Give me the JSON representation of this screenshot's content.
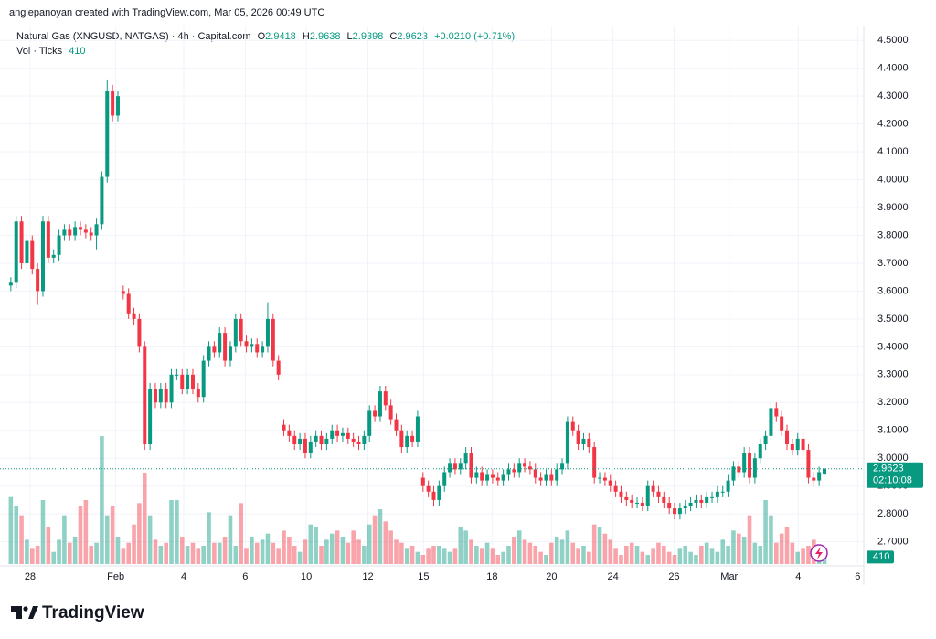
{
  "header": {
    "attribution": "angiepanoyan created with TradingView.com, Mar 05, 2026 00:49 UTC",
    "logo": "TradingView"
  },
  "chart_data": {
    "type": "candlestick",
    "symbol": "Natural Gas (XNGUSD, NATGAS) · 4h · Capital.com",
    "ohlc_labels": [
      "O",
      "H",
      "L",
      "C"
    ],
    "change_label": "+0.0210 (+0.71%)",
    "volume_label": "Vol · Ticks",
    "countdown": "02:10:08",
    "up_color": "#089981",
    "down_color": "#f23645",
    "grid": true,
    "ylim": [
      2.62,
      4.55
    ],
    "volume_ylim": [
      0,
      4500
    ],
    "xlim": [
      -1,
      159
    ],
    "yticks": [
      {
        "value": 2.7,
        "label": "2.7000"
      },
      {
        "value": 2.8,
        "label": "2.8000"
      },
      {
        "value": 2.9,
        "label": "2.9000"
      },
      {
        "value": 3.0,
        "label": "3.0000"
      },
      {
        "value": 3.1,
        "label": "3.1000"
      },
      {
        "value": 3.2,
        "label": "3.2000"
      },
      {
        "value": 3.3,
        "label": "3.3000"
      },
      {
        "value": 3.4,
        "label": "3.4000"
      },
      {
        "value": 3.5,
        "label": "3.5000"
      },
      {
        "value": 3.6,
        "label": "3.6000"
      },
      {
        "value": 3.7,
        "label": "3.7000"
      },
      {
        "value": 3.8,
        "label": "3.8000"
      },
      {
        "value": 3.9,
        "label": "3.9000"
      },
      {
        "value": 4.0,
        "label": "4.0000"
      },
      {
        "value": 4.1,
        "label": "4.1000"
      },
      {
        "value": 4.2,
        "label": "4.2000"
      },
      {
        "value": 4.3,
        "label": "4.3000"
      },
      {
        "value": 4.4,
        "label": "4.4000"
      },
      {
        "value": 4.5,
        "label": "4.5000"
      }
    ],
    "xticks": [
      {
        "value": 3.6,
        "label": "28"
      },
      {
        "value": 19.6,
        "label": "Feb"
      },
      {
        "value": 32.3,
        "label": "4"
      },
      {
        "value": 43.8,
        "label": "6"
      },
      {
        "value": 55.2,
        "label": "10"
      },
      {
        "value": 66.7,
        "label": "12"
      },
      {
        "value": 77.1,
        "label": "15"
      },
      {
        "value": 89.9,
        "label": "18"
      },
      {
        "value": 101,
        "label": "20"
      },
      {
        "value": 112.5,
        "label": "24"
      },
      {
        "value": 123.9,
        "label": "26"
      },
      {
        "value": 134.2,
        "label": "Mar"
      },
      {
        "value": 147.1,
        "label": "4"
      },
      {
        "value": 158.2,
        "label": "6"
      }
    ],
    "open": [
      3.62,
      3.63,
      3.85,
      3.7,
      3.78,
      3.68,
      3.6,
      3.85,
      3.72,
      3.73,
      3.8,
      3.82,
      3.8,
      3.83,
      3.82,
      3.81,
      3.8,
      3.84,
      4.01,
      4.32,
      4.23,
      3.6,
      3.59,
      3.52,
      3.5,
      3.4,
      3.05,
      3.25,
      3.2,
      3.25,
      3.2,
      3.3,
      3.3,
      3.25,
      3.3,
      3.25,
      3.22,
      3.35,
      3.4,
      3.38,
      3.45,
      3.35,
      3.4,
      3.5,
      3.42,
      3.4,
      3.41,
      3.38,
      3.4,
      3.5,
      3.35,
      3.12,
      3.1,
      3.08,
      3.05,
      3.07,
      3.02,
      3.06,
      3.08,
      3.05,
      3.07,
      3.1,
      3.08,
      3.09,
      3.07,
      3.06,
      3.05,
      3.08,
      3.17,
      3.15,
      3.24,
      3.19,
      3.14,
      3.1,
      3.04,
      3.08,
      3.06,
      2.93,
      2.9,
      2.88,
      2.85,
      2.9,
      2.95,
      2.98,
      2.96,
      2.98,
      3.02,
      2.93,
      2.95,
      2.92,
      2.94,
      2.93,
      2.92,
      2.94,
      2.96,
      2.95,
      2.98,
      2.97,
      2.96,
      2.93,
      2.92,
      2.94,
      2.92,
      2.96,
      2.98,
      3.13,
      3.1,
      3.05,
      3.07,
      3.04,
      2.93,
      2.93,
      2.92,
      2.9,
      2.88,
      2.86,
      2.85,
      2.84,
      2.84,
      2.83,
      2.9,
      2.88,
      2.86,
      2.84,
      2.82,
      2.8,
      2.82,
      2.83,
      2.84,
      2.85,
      2.84,
      2.86,
      2.86,
      2.88,
      2.88,
      2.92,
      2.97,
      2.95,
      3.02,
      2.93,
      3.0,
      3.05,
      3.08,
      3.18,
      3.15,
      3.1,
      3.05,
      3.03,
      3.07,
      3.03,
      2.93,
      2.92,
      2.9418
    ],
    "high": [
      3.65,
      3.87,
      3.87,
      3.8,
      3.8,
      3.7,
      3.87,
      3.87,
      3.75,
      3.82,
      3.84,
      3.84,
      3.85,
      3.85,
      3.84,
      3.83,
      3.86,
      4.03,
      4.36,
      4.34,
      4.32,
      3.62,
      3.61,
      3.54,
      3.52,
      3.42,
      3.27,
      3.27,
      3.27,
      3.27,
      3.32,
      3.32,
      3.32,
      3.32,
      3.32,
      3.27,
      3.37,
      3.42,
      3.42,
      3.47,
      3.47,
      3.42,
      3.52,
      3.52,
      3.44,
      3.43,
      3.43,
      3.42,
      3.56,
      3.52,
      3.37,
      3.14,
      3.12,
      3.1,
      3.09,
      3.09,
      3.08,
      3.1,
      3.1,
      3.09,
      3.12,
      3.12,
      3.11,
      3.11,
      3.09,
      3.08,
      3.1,
      3.19,
      3.19,
      3.26,
      3.26,
      3.21,
      3.16,
      3.12,
      3.1,
      3.1,
      3.17,
      2.95,
      2.92,
      2.9,
      2.92,
      2.97,
      3.0,
      3.0,
      3.0,
      3.04,
      3.04,
      2.97,
      2.97,
      2.96,
      2.96,
      2.95,
      2.96,
      2.98,
      2.98,
      3.0,
      3.0,
      2.99,
      2.98,
      2.95,
      2.96,
      2.96,
      2.98,
      3.0,
      3.15,
      3.15,
      3.12,
      3.09,
      3.09,
      3.06,
      2.95,
      2.95,
      2.94,
      2.92,
      2.9,
      2.88,
      2.87,
      2.86,
      2.86,
      2.92,
      2.92,
      2.9,
      2.88,
      2.86,
      2.84,
      2.84,
      2.85,
      2.86,
      2.87,
      2.87,
      2.88,
      2.88,
      2.9,
      2.9,
      2.94,
      2.99,
      2.99,
      3.04,
      3.04,
      3.02,
      3.07,
      3.1,
      3.2,
      3.2,
      3.17,
      3.12,
      3.07,
      3.09,
      3.09,
      3.05,
      2.95,
      2.97,
      2.9638
    ],
    "low": [
      3.6,
      3.61,
      3.68,
      3.68,
      3.66,
      3.55,
      3.58,
      3.7,
      3.7,
      3.71,
      3.78,
      3.78,
      3.78,
      3.8,
      3.79,
      3.78,
      3.75,
      3.82,
      3.99,
      4.21,
      4.21,
      3.57,
      3.5,
      3.48,
      3.38,
      3.03,
      3.03,
      3.18,
      3.18,
      3.18,
      3.18,
      3.28,
      3.23,
      3.23,
      3.23,
      3.2,
      3.2,
      3.33,
      3.36,
      3.36,
      3.33,
      3.33,
      3.38,
      3.4,
      3.38,
      3.38,
      3.36,
      3.36,
      3.38,
      3.33,
      3.28,
      3.08,
      3.06,
      3.03,
      3.03,
      3.0,
      3.0,
      3.04,
      3.03,
      3.03,
      3.05,
      3.06,
      3.06,
      3.05,
      3.04,
      3.03,
      3.03,
      3.06,
      3.13,
      3.13,
      3.17,
      3.12,
      3.08,
      3.02,
      3.02,
      3.04,
      3.04,
      2.88,
      2.86,
      2.83,
      2.83,
      2.88,
      2.93,
      2.94,
      2.94,
      2.96,
      2.91,
      2.91,
      2.9,
      2.9,
      2.91,
      2.9,
      2.9,
      2.92,
      2.93,
      2.93,
      2.95,
      2.94,
      2.91,
      2.9,
      2.9,
      2.9,
      2.9,
      2.94,
      2.96,
      3.08,
      3.03,
      3.03,
      3.02,
      2.91,
      2.91,
      2.9,
      2.88,
      2.86,
      2.84,
      2.83,
      2.82,
      2.82,
      2.81,
      2.81,
      2.86,
      2.84,
      2.82,
      2.8,
      2.78,
      2.78,
      2.8,
      2.81,
      2.82,
      2.82,
      2.82,
      2.84,
      2.84,
      2.86,
      2.86,
      2.9,
      2.93,
      2.93,
      2.91,
      2.91,
      2.98,
      3.03,
      3.06,
      3.13,
      3.08,
      3.03,
      3.01,
      3.01,
      3.01,
      2.91,
      2.9,
      2.9,
      2.9398
    ],
    "close": [
      3.63,
      3.85,
      3.7,
      3.78,
      3.68,
      3.6,
      3.85,
      3.72,
      3.73,
      3.8,
      3.82,
      3.8,
      3.83,
      3.82,
      3.81,
      3.8,
      3.84,
      4.01,
      4.32,
      4.23,
      4.3,
      3.59,
      3.52,
      3.5,
      3.4,
      3.05,
      3.25,
      3.2,
      3.25,
      3.2,
      3.3,
      3.3,
      3.25,
      3.3,
      3.25,
      3.22,
      3.35,
      3.4,
      3.38,
      3.45,
      3.35,
      3.4,
      3.5,
      3.42,
      3.4,
      3.41,
      3.38,
      3.4,
      3.5,
      3.35,
      3.3,
      3.1,
      3.08,
      3.05,
      3.07,
      3.02,
      3.06,
      3.08,
      3.05,
      3.07,
      3.1,
      3.08,
      3.09,
      3.07,
      3.06,
      3.05,
      3.08,
      3.17,
      3.15,
      3.24,
      3.19,
      3.14,
      3.1,
      3.04,
      3.08,
      3.06,
      3.15,
      2.9,
      2.88,
      2.85,
      2.9,
      2.95,
      2.98,
      2.96,
      2.98,
      3.02,
      2.93,
      2.95,
      2.92,
      2.94,
      2.93,
      2.92,
      2.94,
      2.96,
      2.95,
      2.98,
      2.97,
      2.96,
      2.93,
      2.92,
      2.94,
      2.92,
      2.96,
      2.98,
      3.13,
      3.1,
      3.05,
      3.07,
      3.04,
      2.93,
      2.93,
      2.92,
      2.9,
      2.88,
      2.86,
      2.85,
      2.84,
      2.84,
      2.83,
      2.9,
      2.88,
      2.86,
      2.84,
      2.82,
      2.8,
      2.82,
      2.83,
      2.84,
      2.85,
      2.84,
      2.86,
      2.86,
      2.88,
      2.88,
      2.92,
      2.97,
      2.95,
      3.02,
      2.93,
      3.0,
      3.05,
      3.08,
      3.18,
      3.15,
      3.1,
      3.05,
      3.03,
      3.07,
      3.03,
      2.93,
      2.92,
      2.95,
      2.9623
    ],
    "volume": [
      2200,
      1900,
      1600,
      800,
      500,
      600,
      2100,
      1200,
      400,
      800,
      1600,
      700,
      900,
      1900,
      2100,
      600,
      700,
      4200,
      1600,
      1900,
      900,
      500,
      700,
      1300,
      2000,
      3000,
      1600,
      800,
      600,
      700,
      2100,
      2100,
      900,
      600,
      700,
      500,
      600,
      1700,
      700,
      700,
      900,
      1600,
      600,
      2000,
      500,
      900,
      700,
      800,
      1000,
      700,
      500,
      1100,
      900,
      600,
      400,
      800,
      1300,
      1200,
      600,
      800,
      1000,
      1100,
      900,
      700,
      1100,
      800,
      600,
      1300,
      1600,
      1800,
      1400,
      1100,
      800,
      700,
      500,
      600,
      400,
      300,
      500,
      600,
      600,
      500,
      400,
      500,
      1200,
      1100,
      800,
      600,
      500,
      700,
      500,
      300,
      400,
      600,
      900,
      1100,
      800,
      700,
      600,
      400,
      300,
      700,
      900,
      800,
      1100,
      700,
      500,
      600,
      400,
      1300,
      1200,
      1000,
      800,
      500,
      300,
      600,
      700,
      600,
      400,
      300,
      500,
      700,
      600,
      400,
      300,
      500,
      600,
      400,
      300,
      600,
      700,
      500,
      400,
      800,
      600,
      1100,
      1000,
      900,
      1600,
      700,
      600,
      2100,
      1600,
      700,
      1000,
      1200,
      700,
      400,
      500,
      600,
      800,
      500,
      410
    ]
  }
}
